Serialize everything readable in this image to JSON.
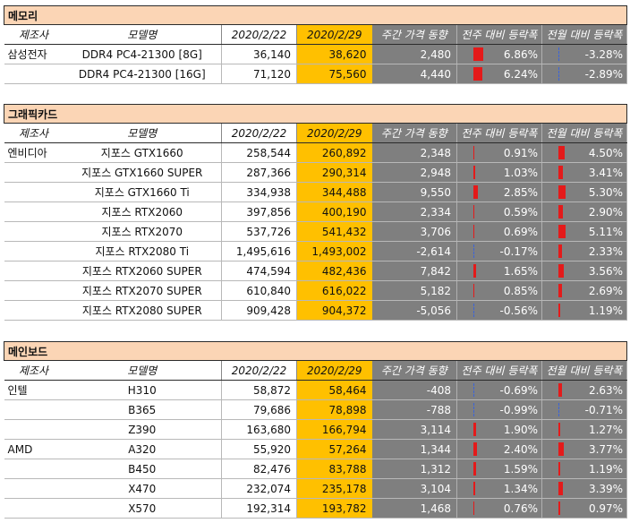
{
  "columns": {
    "maker": "제조사",
    "model": "모델명",
    "prev_date": "2020/2/22",
    "curr_date": "2020/2/29",
    "weekly_diff": "주간 가격 동향",
    "weekly_rate": "전주 대비 등락폭",
    "monthly_rate": "전월 대비 등락폭"
  },
  "colors": {
    "title_bg": "#fbd5b5",
    "current_bg": "#ffc000",
    "grey_bg": "#7f7f7f",
    "bar_pos": "#e41a1a",
    "bar_neg": "#3b64d8"
  },
  "sections": [
    {
      "title": "메모리",
      "rows": [
        {
          "maker": "삼성전자",
          "model": "DDR4 PC4-21300 [8G]",
          "prev": "36,140",
          "curr": "38,620",
          "diff": "2,480",
          "weekly": "6.86%",
          "monthly": "-3.28%",
          "weekly_val": 6.86,
          "monthly_val": -3.28
        },
        {
          "maker": "",
          "model": "DDR4 PC4-21300 [16G]",
          "prev": "71,120",
          "curr": "75,560",
          "diff": "4,440",
          "weekly": "6.24%",
          "monthly": "-2.89%",
          "weekly_val": 6.24,
          "monthly_val": -2.89
        }
      ]
    },
    {
      "title": "그래픽카드",
      "rows": [
        {
          "maker": "엔비디아",
          "model": "지포스 GTX1660",
          "prev": "258,544",
          "curr": "260,892",
          "diff": "2,348",
          "weekly": "0.91%",
          "monthly": "4.50%",
          "weekly_val": 0.91,
          "monthly_val": 4.5
        },
        {
          "maker": "",
          "model": "지포스 GTX1660 SUPER",
          "prev": "287,366",
          "curr": "290,314",
          "diff": "2,948",
          "weekly": "1.03%",
          "monthly": "3.41%",
          "weekly_val": 1.03,
          "monthly_val": 3.41
        },
        {
          "maker": "",
          "model": "지포스 GTX1660 Ti",
          "prev": "334,938",
          "curr": "344,488",
          "diff": "9,550",
          "weekly": "2.85%",
          "monthly": "5.30%",
          "weekly_val": 2.85,
          "monthly_val": 5.3
        },
        {
          "maker": "",
          "model": "지포스 RTX2060",
          "prev": "397,856",
          "curr": "400,190",
          "diff": "2,334",
          "weekly": "0.59%",
          "monthly": "2.90%",
          "weekly_val": 0.59,
          "monthly_val": 2.9
        },
        {
          "maker": "",
          "model": "지포스 RTX2070",
          "prev": "537,726",
          "curr": "541,432",
          "diff": "3,706",
          "weekly": "0.69%",
          "monthly": "5.11%",
          "weekly_val": 0.69,
          "monthly_val": 5.11
        },
        {
          "maker": "",
          "model": "지포스 RTX2080 Ti",
          "prev": "1,495,616",
          "curr": "1,493,002",
          "diff": "-2,614",
          "weekly": "-0.17%",
          "monthly": "2.33%",
          "weekly_val": -0.17,
          "monthly_val": 2.33
        },
        {
          "maker": "",
          "model": "지포스 RTX2060 SUPER",
          "prev": "474,594",
          "curr": "482,436",
          "diff": "7,842",
          "weekly": "1.65%",
          "monthly": "3.56%",
          "weekly_val": 1.65,
          "monthly_val": 3.56
        },
        {
          "maker": "",
          "model": "지포스 RTX2070 SUPER",
          "prev": "610,840",
          "curr": "616,022",
          "diff": "5,182",
          "weekly": "0.85%",
          "monthly": "2.69%",
          "weekly_val": 0.85,
          "monthly_val": 2.69
        },
        {
          "maker": "",
          "model": "지포스 RTX2080 SUPER",
          "prev": "909,428",
          "curr": "904,372",
          "diff": "-5,056",
          "weekly": "-0.56%",
          "monthly": "1.19%",
          "weekly_val": -0.56,
          "monthly_val": 1.19
        }
      ]
    },
    {
      "title": "메인보드",
      "rows": [
        {
          "maker": "인텔",
          "model": "H310",
          "prev": "58,872",
          "curr": "58,464",
          "diff": "-408",
          "weekly": "-0.69%",
          "monthly": "2.63%",
          "weekly_val": -0.69,
          "monthly_val": 2.63
        },
        {
          "maker": "",
          "model": "B365",
          "prev": "79,686",
          "curr": "78,898",
          "diff": "-788",
          "weekly": "-0.99%",
          "monthly": "-0.71%",
          "weekly_val": -0.99,
          "monthly_val": -0.71
        },
        {
          "maker": "",
          "model": "Z390",
          "prev": "163,680",
          "curr": "166,794",
          "diff": "3,114",
          "weekly": "1.90%",
          "monthly": "1.27%",
          "weekly_val": 1.9,
          "monthly_val": 1.27
        },
        {
          "maker": "AMD",
          "model": "A320",
          "prev": "55,920",
          "curr": "57,264",
          "diff": "1,344",
          "weekly": "2.40%",
          "monthly": "3.77%",
          "weekly_val": 2.4,
          "monthly_val": 3.77
        },
        {
          "maker": "",
          "model": "B450",
          "prev": "82,476",
          "curr": "83,788",
          "diff": "1,312",
          "weekly": "1.59%",
          "monthly": "1.19%",
          "weekly_val": 1.59,
          "monthly_val": 1.19
        },
        {
          "maker": "",
          "model": "X470",
          "prev": "232,074",
          "curr": "235,178",
          "diff": "3,104",
          "weekly": "1.34%",
          "monthly": "3.39%",
          "weekly_val": 1.34,
          "monthly_val": 3.39
        },
        {
          "maker": "",
          "model": "X570",
          "prev": "192,314",
          "curr": "193,782",
          "diff": "1,468",
          "weekly": "0.76%",
          "monthly": "0.97%",
          "weekly_val": 0.76,
          "monthly_val": 0.97
        }
      ]
    }
  ]
}
